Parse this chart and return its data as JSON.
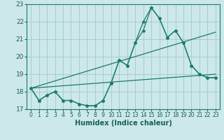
{
  "xlabel": "Humidex (Indice chaleur)",
  "bg_color": "#cce8e8",
  "grid_color": "#aacccc",
  "line_color": "#1a7a6e",
  "xlim": [
    -0.5,
    23.5
  ],
  "ylim": [
    17,
    23
  ],
  "yticks": [
    17,
    18,
    19,
    20,
    21,
    22,
    23
  ],
  "xticks": [
    0,
    1,
    2,
    3,
    4,
    5,
    6,
    7,
    8,
    9,
    10,
    11,
    12,
    13,
    14,
    15,
    16,
    17,
    18,
    19,
    20,
    21,
    22,
    23
  ],
  "curve1_x": [
    0,
    1,
    2,
    3,
    4,
    5,
    6,
    7,
    8,
    9,
    10,
    11,
    12,
    13,
    14,
    15,
    16,
    17,
    18,
    19,
    20,
    21,
    22,
    23
  ],
  "curve1_y": [
    18.2,
    17.5,
    17.8,
    18.0,
    17.5,
    17.5,
    17.3,
    17.2,
    17.2,
    17.5,
    18.5,
    19.8,
    19.5,
    20.8,
    22.0,
    22.8,
    22.2,
    21.1,
    21.5,
    20.8,
    19.5,
    19.0,
    18.8,
    18.8
  ],
  "curve2_x": [
    0,
    1,
    2,
    3,
    4,
    5,
    6,
    7,
    8,
    9,
    10,
    11,
    12,
    13,
    14,
    15,
    16,
    17,
    18,
    19,
    20,
    21,
    22,
    23
  ],
  "curve2_y": [
    18.2,
    17.5,
    17.8,
    18.0,
    17.5,
    17.5,
    17.3,
    17.2,
    17.2,
    17.5,
    18.5,
    19.8,
    19.5,
    20.8,
    21.5,
    22.8,
    22.2,
    21.1,
    21.5,
    20.8,
    19.5,
    19.0,
    18.8,
    18.8
  ],
  "trend1_x": [
    0,
    23
  ],
  "trend1_y": [
    18.2,
    19.0
  ],
  "trend2_x": [
    0,
    23
  ],
  "trend2_y": [
    18.2,
    21.4
  ]
}
